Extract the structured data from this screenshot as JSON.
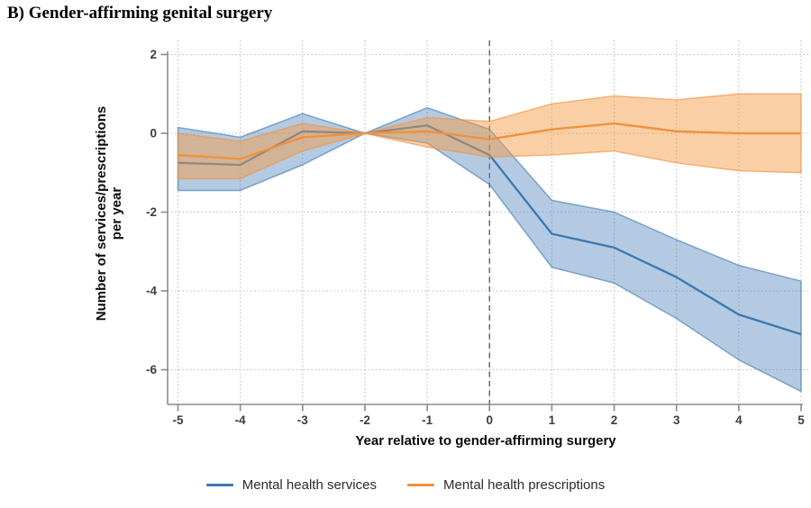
{
  "figure_title": "B) Gender-affirming genital surgery",
  "chart_data": {
    "type": "line",
    "title": "B) Gender-affirming genital surgery",
    "xlabel": "Year relative to gender-affirming surgery",
    "ylabel": "Number of services/prescriptions per year",
    "ylabel_lines": {
      "line1": "Number of services/prescriptions",
      "line2": "per year"
    },
    "x": [
      -5,
      -4,
      -3,
      -2,
      -1,
      0,
      1,
      2,
      3,
      4,
      5
    ],
    "xticks": [
      -5,
      -4,
      -3,
      -2,
      -1,
      0,
      1,
      2,
      3,
      4,
      5
    ],
    "yticks": [
      2,
      0,
      -2,
      -4,
      -6
    ],
    "ylim": [
      -6.9,
      2
    ],
    "xlim": [
      -5,
      5
    ],
    "grid": "dotted",
    "reference_line_x": 0,
    "reference_line_style": "dashed",
    "legend_position": "bottom",
    "series": [
      {
        "name": "Mental health services",
        "color": "#3b77b0",
        "band_fill": "rgba(86,138,190,0.45)",
        "band_edge": "rgba(62,118,173,0.6)",
        "values": [
          -0.75,
          -0.8,
          0.05,
          0,
          0.2,
          -0.55,
          -2.55,
          -2.9,
          -3.65,
          -4.6,
          -5.1
        ],
        "ci_upper": [
          0.15,
          -0.1,
          0.5,
          0,
          0.65,
          0.1,
          -1.7,
          -2.0,
          -2.7,
          -3.35,
          -3.75
        ],
        "ci_lower": [
          -1.45,
          -1.45,
          -0.8,
          0,
          -0.25,
          -1.3,
          -3.4,
          -3.8,
          -4.7,
          -5.75,
          -6.55
        ]
      },
      {
        "name": "Mental health prescriptions",
        "color": "#f0913c",
        "band_fill": "rgba(245,155,66,0.48)",
        "band_edge": "rgba(240,148,64,0.65)",
        "values": [
          -0.55,
          -0.65,
          -0.1,
          0,
          0.05,
          -0.15,
          0.1,
          0.25,
          0.05,
          0.0,
          0.0
        ],
        "ci_upper": [
          0.0,
          -0.2,
          0.25,
          0,
          0.4,
          0.3,
          0.75,
          0.95,
          0.85,
          1.0,
          1.0
        ],
        "ci_lower": [
          -1.15,
          -1.15,
          -0.45,
          0,
          -0.35,
          -0.6,
          -0.55,
          -0.45,
          -0.75,
          -0.95,
          -1.0
        ]
      }
    ]
  },
  "legend": {
    "items": [
      {
        "label": "Mental health services",
        "color": "#3b77b0"
      },
      {
        "label": "Mental health prescriptions",
        "color": "#f0913c"
      }
    ]
  },
  "style": {
    "grid_color": "#c4c4c4",
    "axis_color": "#8a8a8a",
    "tick_label_color": "#3d3d3d",
    "reference_line_color": "#5f5f5f"
  }
}
